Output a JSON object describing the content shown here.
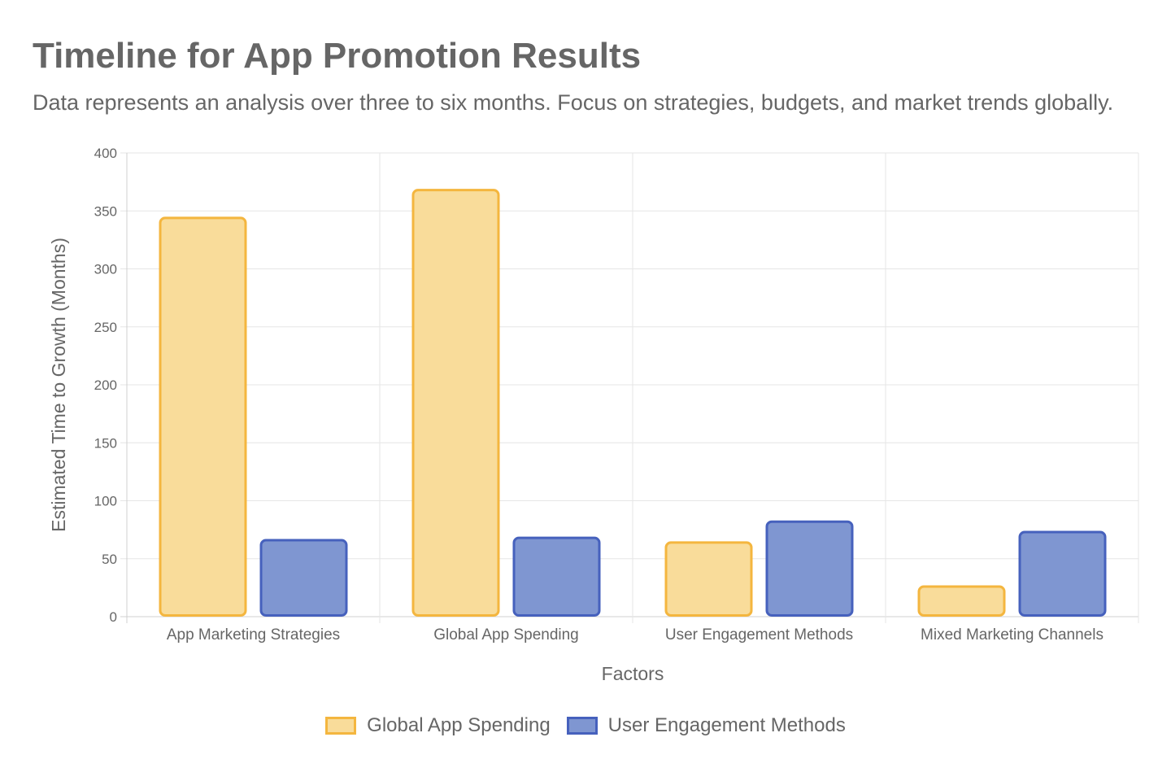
{
  "chart_data": {
    "type": "bar",
    "title": "Timeline for App Promotion Results",
    "subtitle": "Data represents an analysis over three to six months. Focus on strategies, budgets, and market trends globally.",
    "xlabel": "Factors",
    "ylabel": "Estimated Time to Growth (Months)",
    "ylim": [
      0,
      400
    ],
    "yticks": [
      0,
      50,
      100,
      150,
      200,
      250,
      300,
      350,
      400
    ],
    "categories": [
      "App Marketing Strategies",
      "Global App Spending",
      "User Engagement Methods",
      "Mixed Marketing Channels"
    ],
    "series": [
      {
        "name": "Global App Spending",
        "values": [
          345,
          369,
          65,
          27
        ],
        "fill": "#f9dc9a",
        "stroke": "#f4b63f"
      },
      {
        "name": "User Engagement Methods",
        "values": [
          67,
          69,
          83,
          74
        ],
        "fill": "#7f96d1",
        "stroke": "#4661bd"
      }
    ],
    "grid": true,
    "legend_position": "bottom"
  }
}
